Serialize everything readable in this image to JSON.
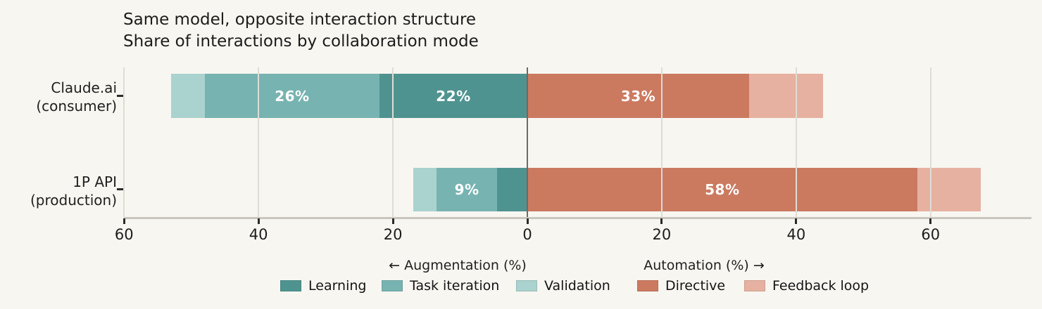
{
  "title": "Same model, opposite interaction structure",
  "subtitle": "Share of interactions by collaboration mode",
  "colors": {
    "background": "#f8f6f1",
    "grid": "#dfdcd6",
    "zero_line": "#6b6b69",
    "axis_line": "#c9c6c0",
    "text": "#1f1f1f",
    "bar_value_text": "#ffffff"
  },
  "chart_data": {
    "type": "bar",
    "variant": "diverging horizontal stacked",
    "title": "Same model, opposite interaction structure",
    "subtitle": "Share of interactions by collaboration mode",
    "x_axis": {
      "tick_values": [
        -60,
        -40,
        -20,
        0,
        20,
        40,
        60
      ],
      "tick_labels": [
        "60",
        "40",
        "20",
        "0",
        "20",
        "40",
        "60"
      ],
      "xlim": [
        -60,
        75
      ],
      "left_direction_label": "← Augmentation (%)",
      "right_direction_label": "Automation (%) →",
      "grid": "on"
    },
    "series": [
      {
        "key": "learning",
        "label": "Learning",
        "color": "#4f9390",
        "side": "left"
      },
      {
        "key": "task_iteration",
        "label": "Task iteration",
        "color": "#77b3b1",
        "side": "left"
      },
      {
        "key": "validation",
        "label": "Validation",
        "color": "#aad2ce",
        "side": "left"
      },
      {
        "key": "directive",
        "label": "Directive",
        "color": "#cb7a60",
        "side": "right"
      },
      {
        "key": "feedback_loop",
        "label": "Feedback loop",
        "color": "#e6b1a0",
        "side": "right"
      }
    ],
    "left_stack_order_from_zero": [
      "learning",
      "task_iteration",
      "validation"
    ],
    "right_stack_order_from_zero": [
      "directive",
      "feedback_loop"
    ],
    "rows": [
      {
        "label_line1": "Claude.ai",
        "label_line2": "(consumer)",
        "values": {
          "learning": 22,
          "task_iteration": 26,
          "validation": 5,
          "directive": 33,
          "feedback_loop": 11
        },
        "shown_value_labels": {
          "task_iteration": "26%",
          "learning": "22%",
          "directive": "33%"
        }
      },
      {
        "label_line1": "1P API",
        "label_line2": "(production)",
        "values": {
          "learning": 4.5,
          "task_iteration": 9,
          "validation": 3.5,
          "directive": 58,
          "feedback_loop": 9.5
        },
        "shown_value_labels": {
          "task_iteration": "9%",
          "directive": "58%"
        }
      }
    ],
    "legend_position": "bottom center"
  }
}
